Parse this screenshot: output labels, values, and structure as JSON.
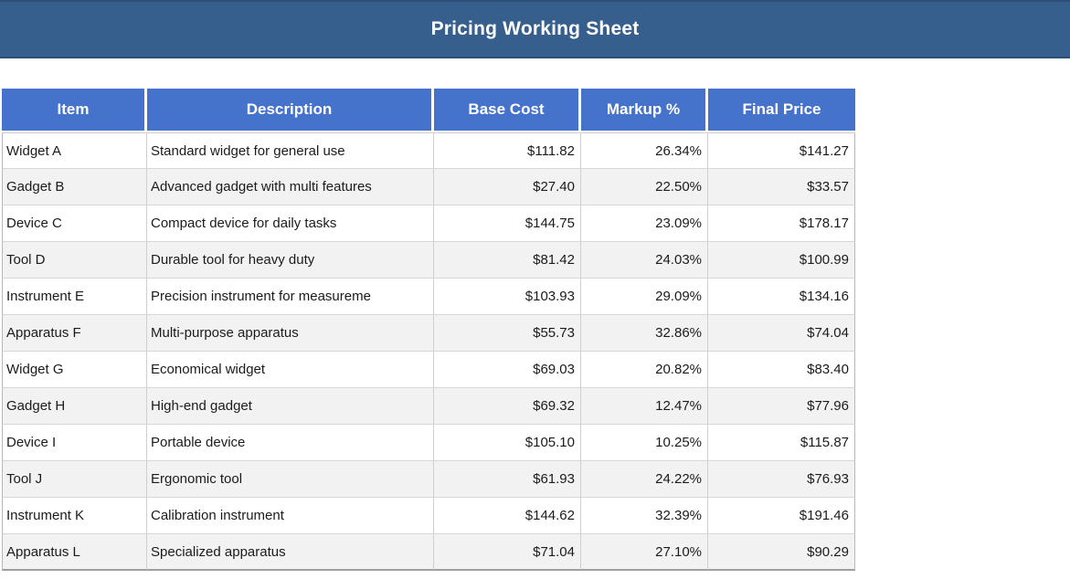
{
  "banner": {
    "title": "Pricing Working Sheet"
  },
  "colors": {
    "banner_bg": "#365f8d",
    "header_bg": "#4573cb",
    "row_alt_bg": "#f2f2f2",
    "header_text": "#ffffff",
    "body_text": "#1b1b1b"
  },
  "table": {
    "columns": [
      "Item",
      "Description",
      "Base Cost",
      "Markup %",
      "Final Price"
    ],
    "rows": [
      {
        "item": "Widget A",
        "description": "Standard widget for general use",
        "base_cost": "$111.82",
        "markup": "26.34%",
        "final_price": "$141.27"
      },
      {
        "item": "Gadget B",
        "description": "Advanced gadget with multi features",
        "base_cost": "$27.40",
        "markup": "22.50%",
        "final_price": "$33.57"
      },
      {
        "item": "Device C",
        "description": "Compact device for daily tasks",
        "base_cost": "$144.75",
        "markup": "23.09%",
        "final_price": "$178.17"
      },
      {
        "item": "Tool D",
        "description": "Durable tool for heavy duty",
        "base_cost": "$81.42",
        "markup": "24.03%",
        "final_price": "$100.99"
      },
      {
        "item": "Instrument E",
        "description": "Precision instrument for measureme",
        "base_cost": "$103.93",
        "markup": "29.09%",
        "final_price": "$134.16"
      },
      {
        "item": "Apparatus F",
        "description": "Multi-purpose apparatus",
        "base_cost": "$55.73",
        "markup": "32.86%",
        "final_price": "$74.04"
      },
      {
        "item": "Widget G",
        "description": "Economical widget",
        "base_cost": "$69.03",
        "markup": "20.82%",
        "final_price": "$83.40"
      },
      {
        "item": "Gadget H",
        "description": "High-end gadget",
        "base_cost": "$69.32",
        "markup": "12.47%",
        "final_price": "$77.96"
      },
      {
        "item": "Device I",
        "description": "Portable device",
        "base_cost": "$105.10",
        "markup": "10.25%",
        "final_price": "$115.87"
      },
      {
        "item": "Tool J",
        "description": "Ergonomic tool",
        "base_cost": "$61.93",
        "markup": "24.22%",
        "final_price": "$76.93"
      },
      {
        "item": "Instrument K",
        "description": "Calibration instrument",
        "base_cost": "$144.62",
        "markup": "32.39%",
        "final_price": "$191.46"
      },
      {
        "item": "Apparatus L",
        "description": "Specialized apparatus",
        "base_cost": "$71.04",
        "markup": "27.10%",
        "final_price": "$90.29"
      }
    ]
  }
}
